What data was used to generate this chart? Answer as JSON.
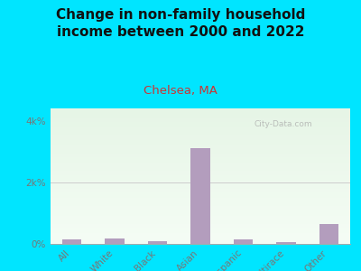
{
  "title": "Change in non-family household\nincome between 2000 and 2022",
  "subtitle": "Chelsea, MA",
  "categories": [
    "All",
    "White",
    "Black",
    "Asian",
    "Hispanic",
    "Multirace",
    "Other"
  ],
  "values": [
    150,
    170,
    90,
    3100,
    160,
    70,
    650
  ],
  "bar_color": "#b39dbd",
  "title_fontsize": 11,
  "subtitle_fontsize": 9.5,
  "subtitle_color": "#cc3333",
  "title_color": "#111111",
  "background_outer": "#00e5ff",
  "tick_label_color": "#777777",
  "ytick_labels": [
    "0%",
    "2k%",
    "4k%"
  ],
  "ytick_values": [
    0,
    2000,
    4000
  ],
  "ylim": [
    0,
    4400
  ],
  "watermark": "City-Data.com"
}
